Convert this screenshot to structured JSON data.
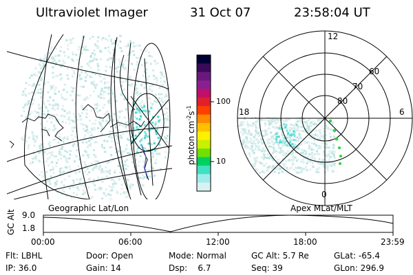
{
  "header": {
    "instrument": "Ultraviolet Imager",
    "date": "31 Oct 07",
    "time": "23:58:04 UT"
  },
  "colorbar": {
    "unit_label": "photon cm",
    "unit_exp1": "-2",
    "unit_mid": "s",
    "unit_exp2": "-1",
    "ticks": [
      "100",
      "10"
    ],
    "colors": [
      "#000033",
      "#3a0a5a",
      "#6a1880",
      "#8a2090",
      "#c0106a",
      "#e0202a",
      "#ff4000",
      "#ff8a00",
      "#ffc000",
      "#fff000",
      "#c8f000",
      "#70e000",
      "#00d060",
      "#40e0c0",
      "#a0ecec",
      "#d8f2f2"
    ]
  },
  "polar_plot": {
    "mlt_labels": {
      "top": "12",
      "left": "18",
      "right": "6",
      "bottom": "0"
    },
    "lat_labels": [
      "60",
      "70",
      "80"
    ]
  },
  "panel_labels": {
    "left": "Geographic Lat/Lon",
    "right": "Apex MLat/MLT"
  },
  "timeline": {
    "ylabel": "GC Alt",
    "yticks": [
      "9.0",
      "1.8"
    ],
    "xticks": [
      "00:00",
      "06:00",
      "12:00",
      "18:00",
      "23:59"
    ]
  },
  "status": {
    "filter_label": "Flt:",
    "filter_value": "LBHL",
    "ip_label": "IP:",
    "ip_value": "36.0",
    "door_label": "Door:",
    "door_value": "Open",
    "gain_label": "Gain:",
    "gain_value": "14",
    "mode_label": "Mode:",
    "mode_value": "Normal",
    "dsp_label": "Dsp:",
    "dsp_value": "6.7",
    "gcalt_label": "GC Alt:",
    "gcalt_value": "5.7 Re",
    "seq_label": "Seq:",
    "seq_value": "39",
    "glat_label": "GLat:",
    "glat_value": "-65.4",
    "glon_label": "GLon:",
    "glon_value": "296.9"
  }
}
